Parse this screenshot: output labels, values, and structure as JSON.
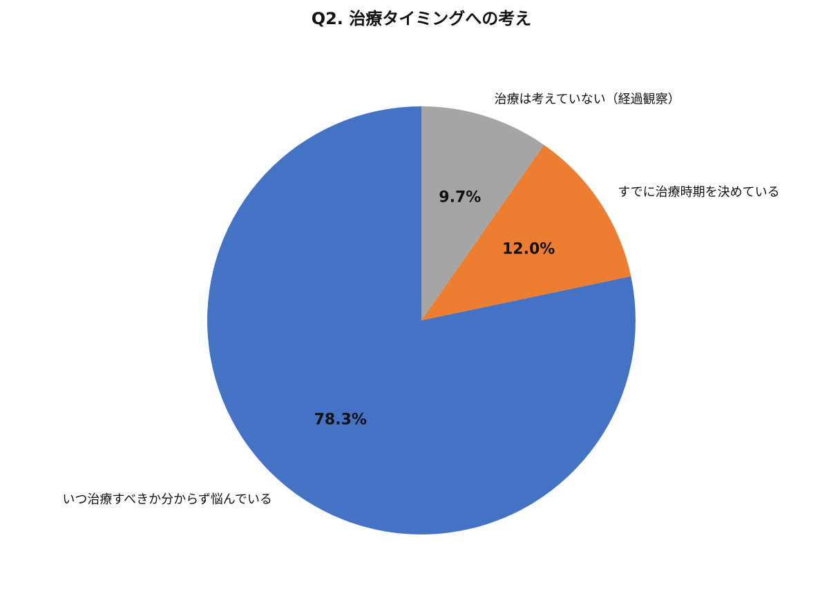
{
  "chart_data": {
    "type": "pie",
    "title": "Q2. 治療タイミングへの考え",
    "categories": [
      "治療は考えていない（経過観察）",
      "すでに治療時期を決めている",
      "いつ治療すべきか分からず悩んでいる"
    ],
    "values": [
      9.7,
      12.0,
      78.3
    ],
    "value_labels": [
      "9.7%",
      "12.0%",
      "78.3%"
    ],
    "colors": [
      "#a5a5a5",
      "#ed7d31",
      "#4472c4"
    ]
  }
}
